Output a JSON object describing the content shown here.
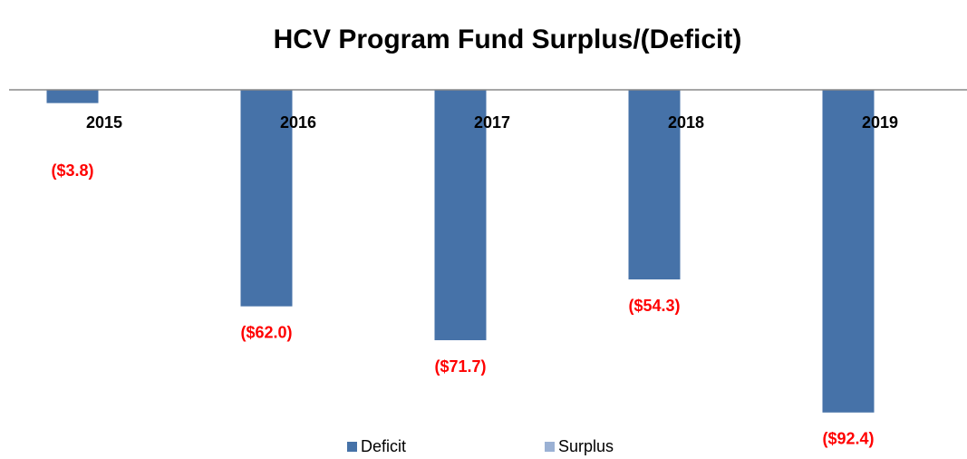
{
  "chart_data": {
    "type": "bar",
    "title": "HCV Program Fund Surplus/(Deficit)",
    "categories": [
      "2015",
      "2016",
      "2017",
      "2018",
      "2019"
    ],
    "series": [
      {
        "name": "Deficit",
        "color": "#4672a8",
        "values": [
          -3.8,
          -62.0,
          -71.7,
          -54.3,
          -92.4
        ],
        "value_labels": [
          "($3.8)",
          "($62.0)",
          "($71.7)",
          "($54.3)",
          "($92.4)"
        ]
      },
      {
        "name": "Surplus",
        "color": "#9bb1d4",
        "values": [
          null,
          null,
          null,
          null,
          null
        ]
      }
    ],
    "ylim": [
      -100,
      0
    ],
    "value_label_color": "#ff0000"
  }
}
